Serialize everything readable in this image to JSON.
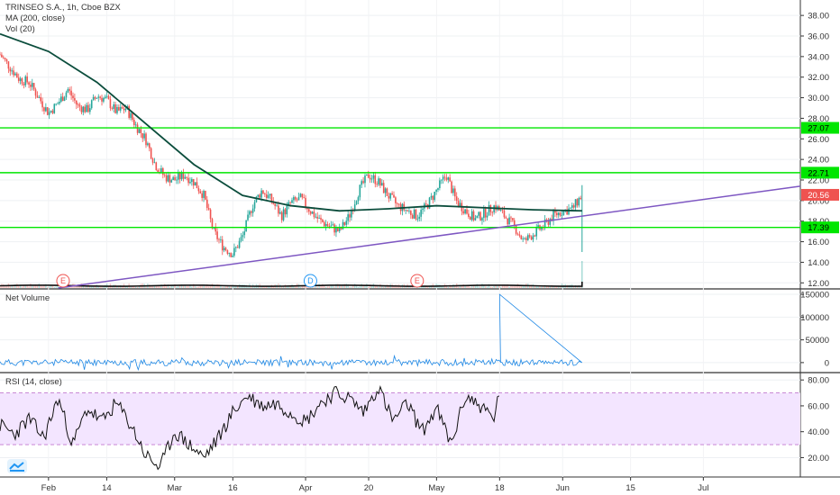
{
  "header": {
    "symbol_line": "TRINSEO S.A., 1h, Cboe BZX",
    "ma_line": "MA (200, close)",
    "vol_line": "Vol (20)"
  },
  "colors": {
    "up": "#26a69a",
    "down": "#ef5350",
    "ma": "#0b4d3c",
    "level_line": "#00e600",
    "trend_line": "#7e57c2",
    "rsi_band": "#f3e5ff",
    "rsi_band_border": "#9c27b0",
    "last_price_bg": "#ef5350"
  },
  "chart_data": [
    {
      "type": "line",
      "pane": "price",
      "ylim": [
        11.5,
        39.5
      ],
      "y_ticks": [
        "38.00",
        "36.00",
        "34.00",
        "32.00",
        "30.00",
        "28.00",
        "26.00",
        "24.00",
        "22.00",
        "20.00",
        "18.00",
        "16.00",
        "14.00",
        "12.00"
      ],
      "x_ticks": [
        "Feb",
        "14",
        "Mar",
        "16",
        "Apr",
        "20",
        "May",
        "18",
        "Jun",
        "15",
        "Jul"
      ],
      "series": [
        {
          "kind": "candles-close",
          "x": [
            0,
            2,
            4,
            6,
            8,
            10,
            12,
            14,
            16,
            18,
            20,
            22,
            24,
            26,
            28,
            30,
            32,
            34,
            36,
            38,
            40,
            42,
            44,
            46,
            48,
            50,
            52,
            54,
            56,
            58,
            60,
            62,
            64,
            66,
            68,
            70,
            72,
            74,
            76,
            78,
            80,
            82,
            84,
            86,
            88,
            90,
            92,
            94,
            96,
            98,
            100,
            102,
            104,
            106,
            108,
            110,
            112,
            114,
            116,
            118,
            120
          ],
          "values": [
            34.2,
            33.0,
            31.8,
            31.5,
            30.0,
            28.5,
            29.5,
            30.8,
            29.2,
            28.8,
            30.2,
            29.8,
            28.6,
            29.0,
            27.3,
            26.0,
            23.5,
            22.3,
            22.0,
            22.5,
            21.8,
            20.5,
            17.0,
            15.5,
            14.8,
            16.5,
            19.5,
            21.0,
            20.0,
            18.5,
            19.8,
            20.2,
            19.0,
            18.0,
            17.5,
            17.0,
            18.5,
            21.0,
            22.5,
            21.8,
            20.5,
            19.5,
            19.0,
            18.5,
            19.5,
            21.0,
            22.5,
            20.0,
            19.0,
            18.2,
            18.8,
            19.5,
            18.5,
            17.5,
            16.0,
            16.8,
            17.5,
            18.5,
            19.0,
            19.2,
            20.56
          ]
        },
        {
          "name": "MA (200, close)",
          "x": [
            0,
            10,
            20,
            30,
            40,
            50,
            60,
            70,
            80,
            90,
            100,
            110,
            120
          ],
          "values": [
            36.2,
            34.5,
            31.5,
            27.5,
            23.5,
            20.5,
            19.5,
            19.0,
            19.2,
            19.5,
            19.3,
            19.1,
            19.0
          ]
        }
      ],
      "horizontal_levels": [
        27.07,
        22.71,
        17.39
      ],
      "trend_line": {
        "x": [
          12,
          165
        ],
        "values": [
          11.5,
          21.4
        ]
      },
      "last_price": 20.56,
      "price_tags": [
        {
          "value": 27.07,
          "label": "27.07",
          "color": "#00e600"
        },
        {
          "value": 22.71,
          "label": "22.71",
          "color": "#00e600"
        },
        {
          "value": 20.56,
          "label": "20.56",
          "color": "#ef5350"
        },
        {
          "value": 17.39,
          "label": "17.39",
          "color": "#00e600"
        }
      ],
      "events": [
        {
          "x": 13,
          "label": "E",
          "color": "#ef5350"
        },
        {
          "x": 64,
          "label": "D",
          "color": "#2196f3"
        },
        {
          "x": 86,
          "label": "E",
          "color": "#ef5350"
        }
      ]
    },
    {
      "type": "line",
      "pane": "net-volume",
      "title": "Net Volume",
      "ylim": [
        -20000,
        160000
      ],
      "y_ticks": [
        "150000",
        "100000",
        "50000",
        "0"
      ],
      "spike": {
        "x": 103,
        "value": 150000
      }
    },
    {
      "type": "line",
      "pane": "rsi",
      "title": "RSI (14, close)",
      "ylim": [
        5,
        85
      ],
      "y_ticks": [
        "80.00",
        "60.00",
        "40.00",
        "20.00"
      ],
      "band": [
        30,
        70
      ],
      "x": [
        0,
        3,
        6,
        9,
        12,
        15,
        18,
        21,
        24,
        27,
        30,
        33,
        36,
        39,
        42,
        45,
        48,
        51,
        54,
        57,
        60,
        63,
        66,
        69,
        72,
        75,
        78,
        81,
        84,
        87,
        90,
        93,
        96,
        99,
        102,
        103
      ],
      "values": [
        45,
        38,
        50,
        35,
        66,
        30,
        58,
        48,
        62,
        45,
        22,
        12,
        40,
        30,
        20,
        35,
        55,
        68,
        60,
        62,
        55,
        48,
        62,
        70,
        66,
        55,
        75,
        48,
        62,
        40,
        58,
        30,
        68,
        60,
        50,
        73
      ]
    }
  ]
}
